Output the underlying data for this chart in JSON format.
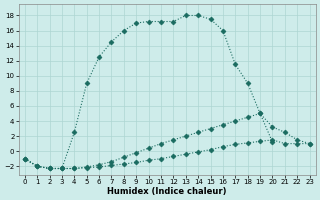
{
  "xlabel": "Humidex (Indice chaleur)",
  "bg_color": "#ceecea",
  "line_color": "#1a6b60",
  "grid_color": "#aed6d2",
  "xlim": [
    -0.5,
    23.5
  ],
  "ylim": [
    -3.2,
    19.5
  ],
  "xticks": [
    0,
    1,
    2,
    3,
    4,
    5,
    6,
    7,
    8,
    9,
    10,
    11,
    12,
    13,
    14,
    15,
    16,
    17,
    18,
    19,
    20,
    21,
    22,
    23
  ],
  "yticks": [
    -2,
    0,
    2,
    4,
    6,
    8,
    10,
    12,
    14,
    16,
    18
  ],
  "line1_x": [
    0,
    1,
    2,
    3,
    4,
    5,
    6,
    7,
    8,
    9,
    10,
    11,
    12,
    13,
    14,
    15,
    16,
    17,
    18,
    19,
    20
  ],
  "line1_y": [
    -1,
    -2,
    -2.3,
    -2.3,
    2.5,
    9.0,
    12.5,
    14.5,
    16.0,
    17.0,
    17.2,
    17.2,
    17.2,
    18.0,
    18.0,
    17.5,
    16.0,
    11.5,
    9.0,
    5.0,
    1.2
  ],
  "line2_x": [
    0,
    1,
    2,
    3,
    4,
    5,
    6,
    7,
    8,
    9,
    10,
    11,
    12,
    13,
    14,
    15,
    16,
    17,
    18,
    19,
    20,
    21,
    22,
    23
  ],
  "line2_y": [
    -1,
    -2,
    -2.3,
    -2.3,
    -2.3,
    -2.1,
    -1.8,
    -1.4,
    -0.8,
    -0.2,
    0.4,
    1.0,
    1.5,
    2.0,
    2.5,
    3.0,
    3.5,
    4.0,
    4.5,
    5.0,
    3.2,
    2.5,
    1.5,
    1.0
  ],
  "line3_x": [
    0,
    1,
    2,
    3,
    4,
    5,
    6,
    7,
    8,
    9,
    10,
    11,
    12,
    13,
    14,
    15,
    16,
    17,
    18,
    19,
    20,
    21,
    22,
    23
  ],
  "line3_y": [
    -1,
    -2,
    -2.3,
    -2.3,
    -2.3,
    -2.2,
    -2.1,
    -1.9,
    -1.7,
    -1.5,
    -1.2,
    -1.0,
    -0.7,
    -0.4,
    -0.1,
    0.2,
    0.6,
    0.9,
    1.1,
    1.3,
    1.5,
    1.0,
    1.0,
    1.0
  ],
  "marker": "D",
  "markersize": 2.5,
  "linewidth": 0.8
}
